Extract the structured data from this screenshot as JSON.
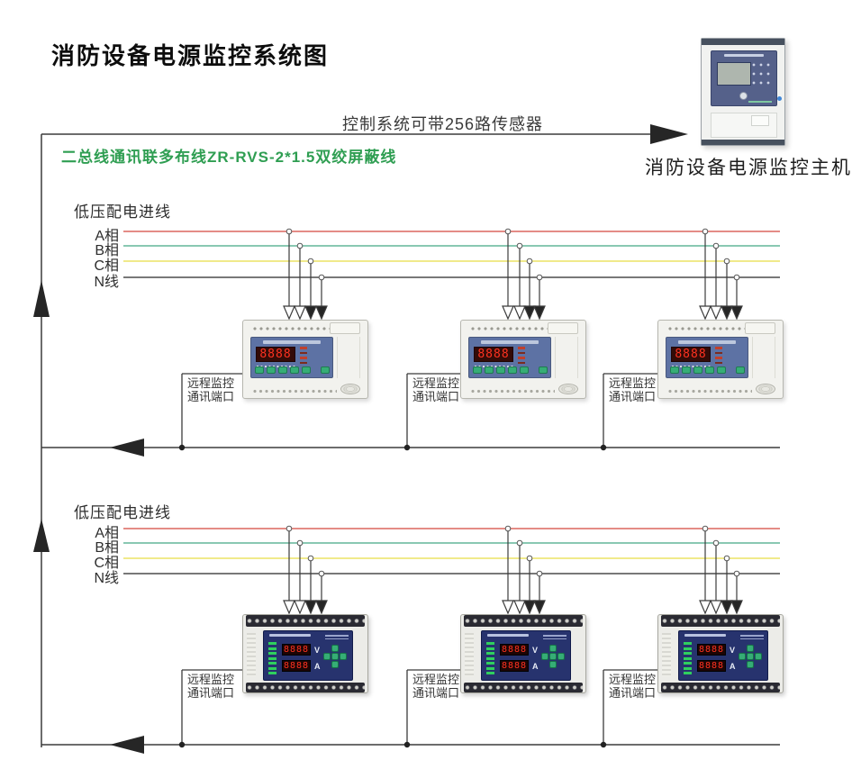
{
  "page": {
    "title": "消防设备电源监控系统图"
  },
  "top": {
    "capacity_note": "控制系统可带256路传感器",
    "bus_wire_label": "二总线通讯联多布线ZR-RVS-2*1.5双绞屏蔽线",
    "host_label": "消防设备电源监控主机"
  },
  "sections": [
    {
      "feed_label": "低压配电进线",
      "phases": [
        {
          "label": "A相"
        },
        {
          "label": "B相"
        },
        {
          "label": "C相"
        },
        {
          "label": "N线"
        }
      ],
      "port_label_line1": "远程监控",
      "port_label_line2": "通讯端口"
    },
    {
      "feed_label": "低压配电进线",
      "phases": [
        {
          "label": "A相"
        },
        {
          "label": "B相"
        },
        {
          "label": "C相"
        },
        {
          "label": "N线"
        }
      ],
      "port_label_line1": "远程监控",
      "port_label_line2": "通讯端口"
    }
  ],
  "device": {
    "display_digits": "8888",
    "volt_label": "V",
    "amp_label": "A"
  },
  "colors": {
    "phase_a": "#dc675e",
    "phase_b": "#62b699",
    "phase_c": "#ece465",
    "phase_n": "#4c4c4c",
    "wire": "#3b3b3b",
    "arrow_fill": "#262626",
    "green_label": "#2f9e52",
    "panel_a": "#5d72a4",
    "panel_b": "#27336e",
    "display_red": "#ff3220",
    "button_green": "#36ad76",
    "led_green": "#2fcf5e",
    "host_trim": "#46505e"
  }
}
